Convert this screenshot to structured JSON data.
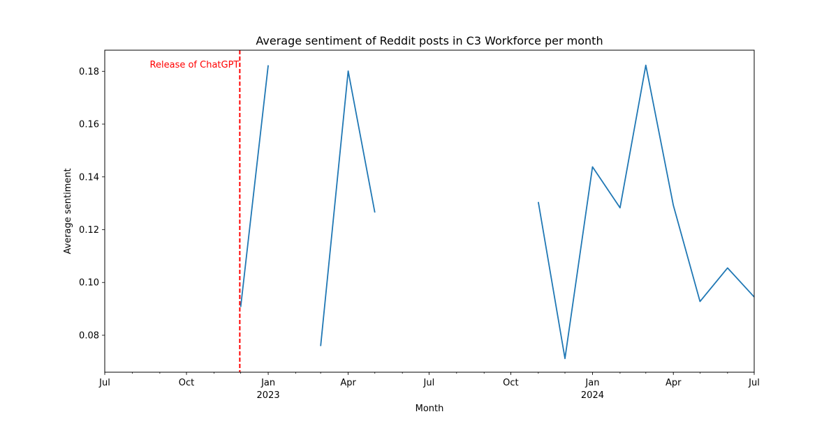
{
  "chart_data": {
    "type": "line",
    "title": "Average sentiment of Reddit posts in C3 Workforce per month",
    "xlabel": "Month",
    "ylabel": "Average sentiment",
    "xlim": [
      "2022-07-01",
      "2024-07-01"
    ],
    "ylim": [
      0.066,
      0.188
    ],
    "grid": false,
    "y_ticks": [
      0.08,
      0.1,
      0.12,
      0.14,
      0.16,
      0.18
    ],
    "y_tick_labels": [
      "0.08",
      "0.10",
      "0.12",
      "0.14",
      "0.16",
      "0.18"
    ],
    "x_ticks": [
      {
        "date": "2022-07-01",
        "label": "Jul",
        "year": ""
      },
      {
        "date": "2022-10-01",
        "label": "Oct",
        "year": ""
      },
      {
        "date": "2023-01-01",
        "label": "Jan",
        "year": "2023"
      },
      {
        "date": "2023-04-01",
        "label": "Apr",
        "year": ""
      },
      {
        "date": "2023-07-01",
        "label": "Jul",
        "year": ""
      },
      {
        "date": "2023-10-01",
        "label": "Oct",
        "year": ""
      },
      {
        "date": "2024-01-01",
        "label": "Jan",
        "year": "2024"
      },
      {
        "date": "2024-04-01",
        "label": "Apr",
        "year": ""
      },
      {
        "date": "2024-07-01",
        "label": "Jul",
        "year": ""
      }
    ],
    "series": [
      {
        "color": "#1f77b4",
        "points": [
          {
            "x": "2022-12-01",
            "y": 0.0907
          },
          {
            "x": "2023-01-01",
            "y": 0.1823
          },
          {
            "x": "2023-02-01",
            "y": null
          },
          {
            "x": "2023-03-01",
            "y": 0.0759
          },
          {
            "x": "2023-04-01",
            "y": 0.1801
          },
          {
            "x": "2023-05-01",
            "y": 0.1265
          },
          {
            "x": "2023-06-01",
            "y": null
          },
          {
            "x": "2023-07-01",
            "y": null
          },
          {
            "x": "2023-08-01",
            "y": null
          },
          {
            "x": "2023-09-01",
            "y": null
          },
          {
            "x": "2023-10-01",
            "y": null
          },
          {
            "x": "2023-11-01",
            "y": 0.1305
          },
          {
            "x": "2023-12-01",
            "y": 0.0712
          },
          {
            "x": "2024-01-01",
            "y": 0.1438
          },
          {
            "x": "2024-02-01",
            "y": 0.1283
          },
          {
            "x": "2024-03-01",
            "y": 0.1823
          },
          {
            "x": "2024-04-01",
            "y": 0.1292
          },
          {
            "x": "2024-05-01",
            "y": 0.0928
          },
          {
            "x": "2024-06-01",
            "y": 0.1055
          },
          {
            "x": "2024-07-01",
            "y": 0.0945
          }
        ]
      }
    ],
    "annotations": [
      {
        "type": "vline",
        "x": "2022-11-30",
        "color": "#ff0000",
        "style": "dashed",
        "text": "Release of ChatGPT"
      }
    ]
  }
}
